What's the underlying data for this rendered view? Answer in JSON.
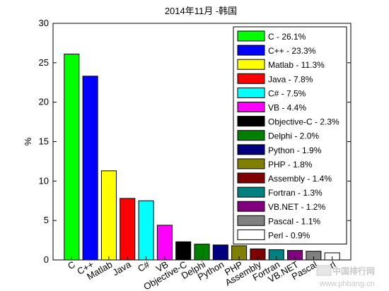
{
  "chart_data": {
    "type": "bar",
    "title": "2014年11月 -韩国",
    "xlabel": "",
    "ylabel": "%",
    "ylim": [
      0,
      30
    ],
    "yticks": [
      0,
      5,
      10,
      15,
      20,
      25,
      30
    ],
    "grid": false,
    "legend_position": "top-right",
    "categories": [
      "C",
      "C++",
      "Matlab",
      "Java",
      "C#",
      "VB",
      "Objective-C",
      "Delphi",
      "Python",
      "PHP",
      "Assembly",
      "Fortran",
      "VB.NET",
      "Pascal",
      "Perl"
    ],
    "values": [
      26.1,
      23.3,
      11.3,
      7.8,
      7.5,
      4.4,
      2.3,
      2.0,
      1.9,
      1.8,
      1.4,
      1.3,
      1.2,
      1.1,
      0.9
    ],
    "colors": [
      "#00ff00",
      "#0000ff",
      "#ffff00",
      "#ff0000",
      "#00ffff",
      "#ff00ff",
      "#000000",
      "#008000",
      "#000080",
      "#808000",
      "#800000",
      "#008080",
      "#800080",
      "#808080",
      "#ffffff"
    ],
    "legend": [
      "C - 26.1%",
      "C++ - 23.3%",
      "Matlab - 11.3%",
      "Java - 7.8%",
      "C# - 7.5%",
      "VB - 4.4%",
      "Objective-C - 2.3%",
      "Delphi - 2.0%",
      "Python - 1.9%",
      "PHP - 1.8%",
      "Assembly - 1.4%",
      "Fortran - 1.3%",
      "VB.NET - 1.2%",
      "Pascal - 1.1%",
      "Perl - 0.9%"
    ]
  },
  "watermark": {
    "name": "中国排行网",
    "url": "www.phbang.cn"
  }
}
